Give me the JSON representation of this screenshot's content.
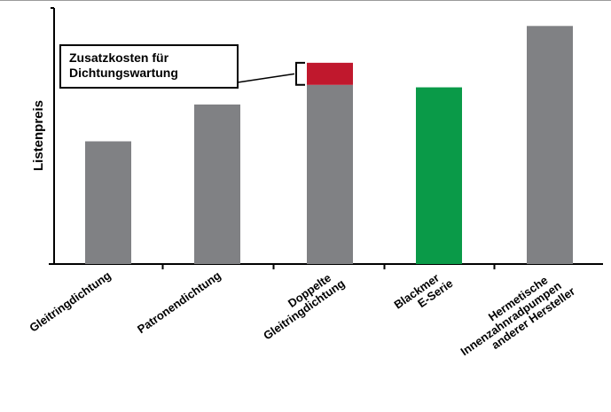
{
  "chart_data": {
    "type": "bar",
    "title": "",
    "xlabel": "",
    "ylabel": "Listenpreis",
    "ylim": [
      0,
      100
    ],
    "categories": [
      [
        "Gleitringdichtung"
      ],
      [
        "Patronendichtung"
      ],
      [
        "Doppelte",
        "Gleitringdichtung"
      ],
      [
        "Blackmer",
        "E-Serie"
      ],
      [
        "Hermetische",
        "Innenzahnradpumpen",
        "anderer Hersteller"
      ]
    ],
    "values": [
      50,
      65,
      73,
      72,
      97
    ],
    "addon_values": [
      0,
      0,
      9,
      0,
      0
    ],
    "bar_colors": [
      "#808184",
      "#808184",
      "#808184",
      "#0a9a48",
      "#808184"
    ],
    "addon_color": "#c0182d",
    "grid": false,
    "annotation": {
      "lines": [
        "Zusatzkosten für",
        "Dichtungswartung"
      ],
      "target_index": 2
    }
  }
}
